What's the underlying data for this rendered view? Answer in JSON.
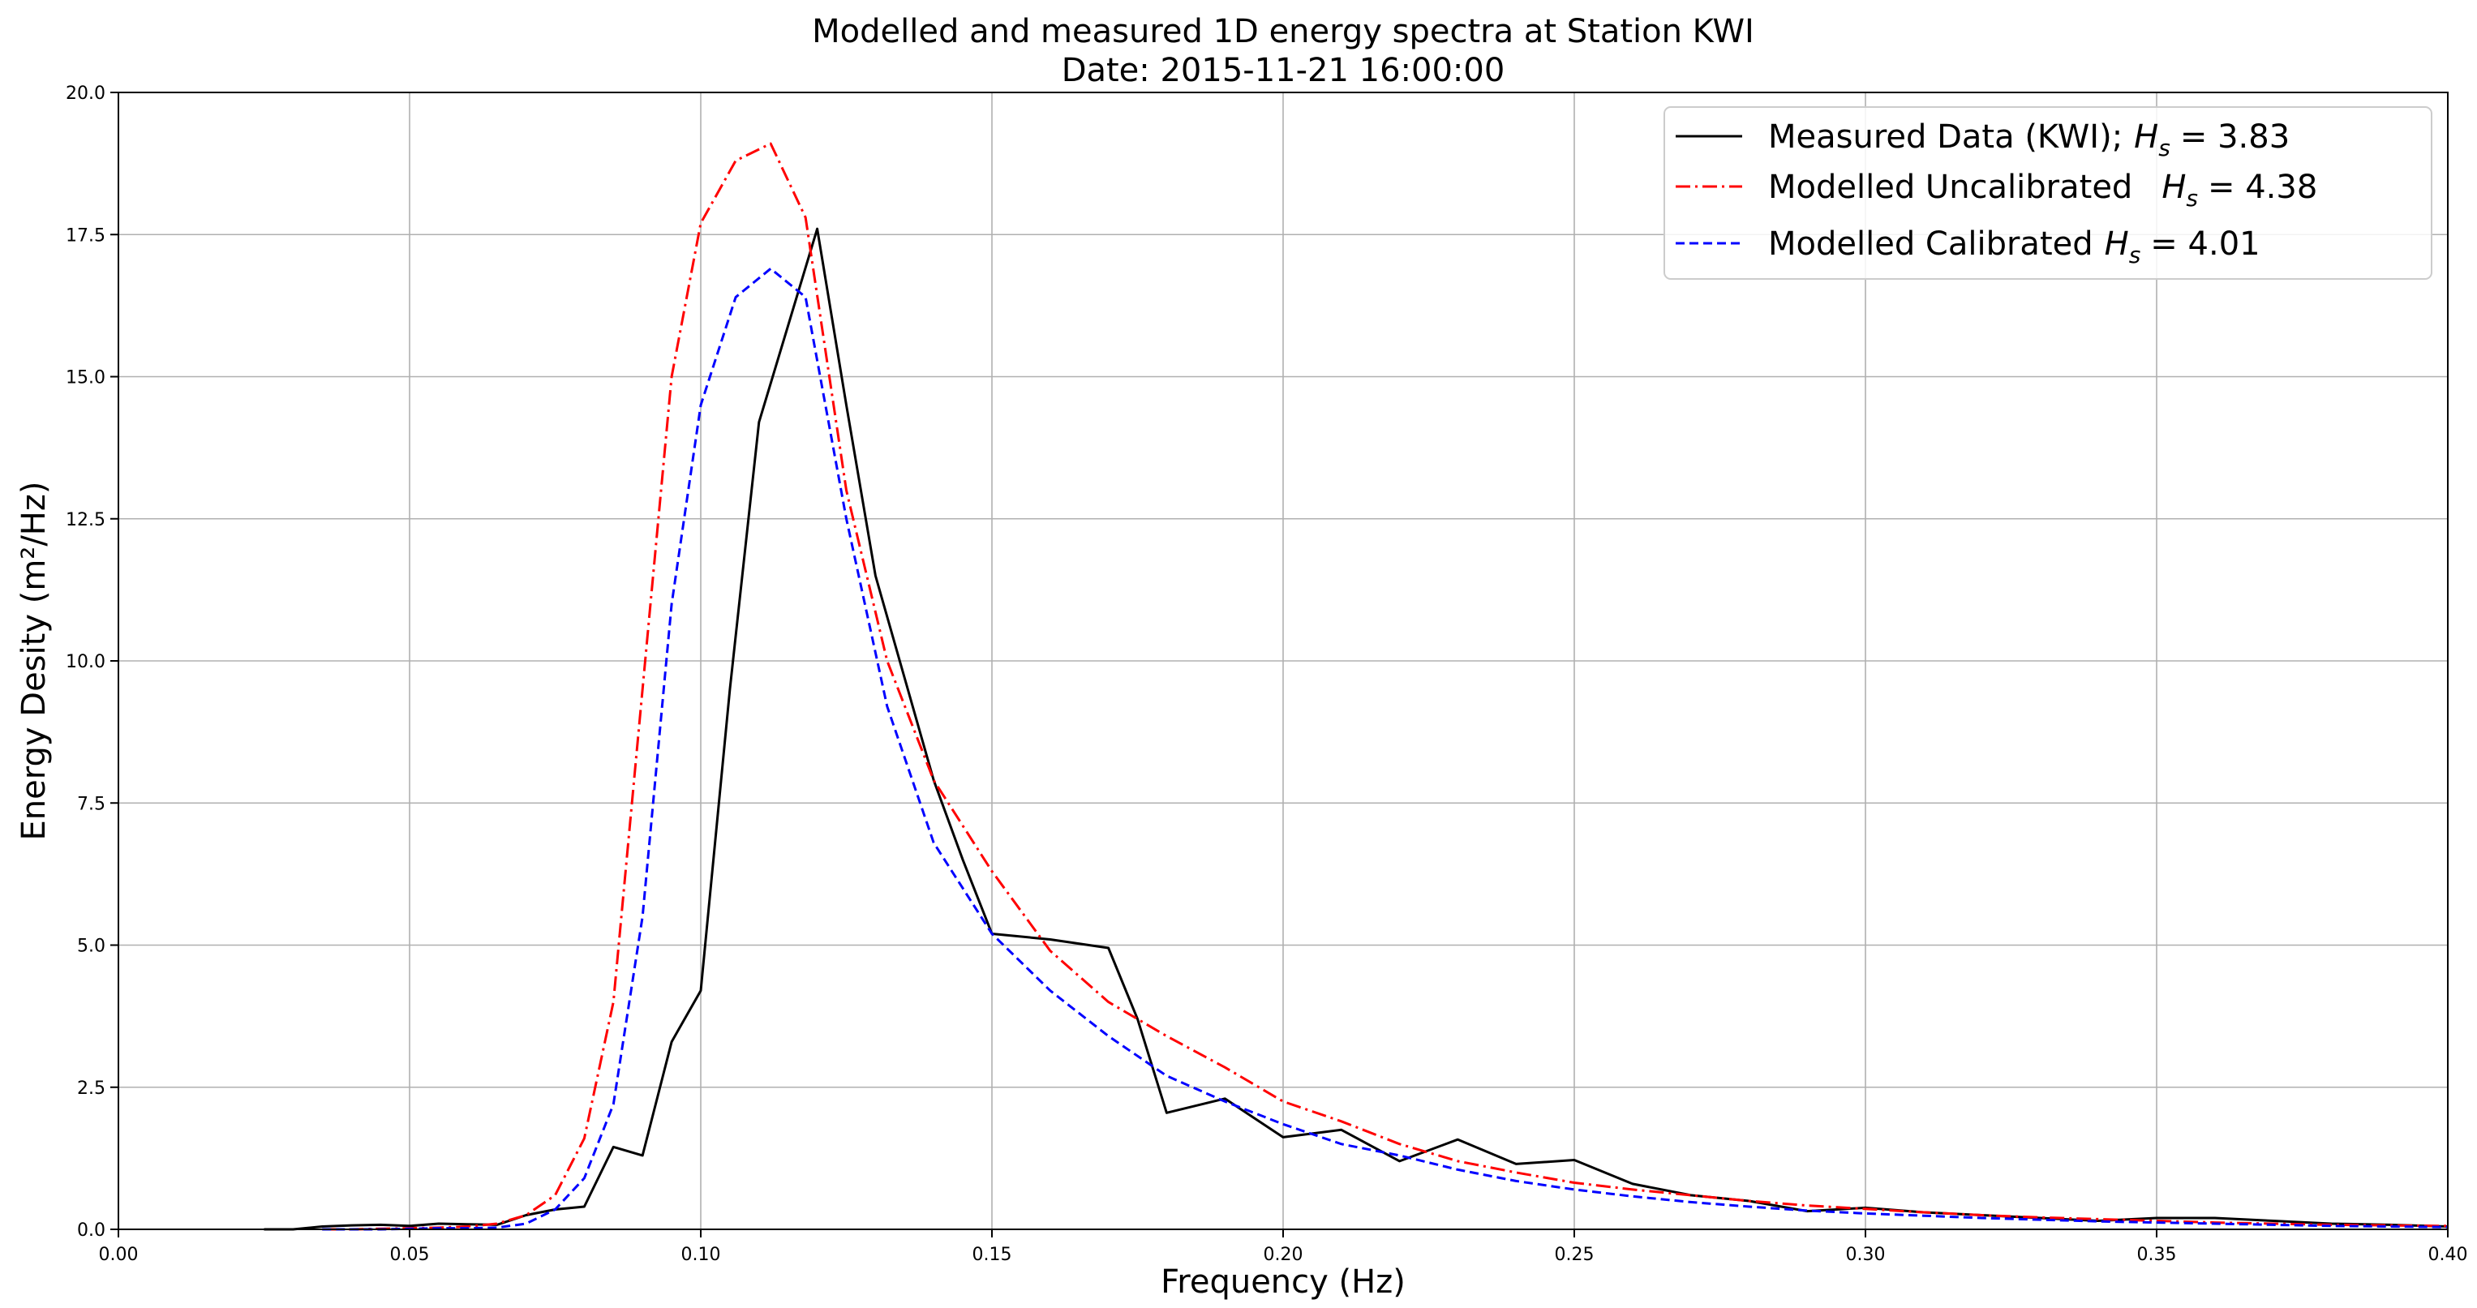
{
  "chart_data": {
    "type": "line",
    "title": "Modelled and measured 1D energy spectra at Station KWI",
    "subtitle": "Date: 2015-11-21 16:00:00",
    "xlabel": "Frequency (Hz)",
    "ylabel": "Energy Desity (m²/Hz)",
    "xlim": [
      0.0,
      0.4
    ],
    "ylim": [
      0.0,
      20.0
    ],
    "xticks": [
      0.0,
      0.05,
      0.1,
      0.15,
      0.2,
      0.25,
      0.3,
      0.35,
      0.4
    ],
    "xtick_labels": [
      "0.00",
      "0.05",
      "0.10",
      "0.15",
      "0.20",
      "0.25",
      "0.30",
      "0.35",
      "0.40"
    ],
    "yticks": [
      0.0,
      2.5,
      5.0,
      7.5,
      10.0,
      12.5,
      15.0,
      17.5,
      20.0
    ],
    "ytick_labels": [
      "0.0",
      "2.5",
      "5.0",
      "7.5",
      "10.0",
      "12.5",
      "15.0",
      "17.5",
      "20.0"
    ],
    "grid": true,
    "legend_position": "top-right",
    "series": [
      {
        "name": "Measured Data (KWI); Hs = 3.83",
        "legend_prefix": "Measured Data (KWI);",
        "legend_hs": "= 3.83",
        "color": "#000000",
        "style": "solid",
        "x": [
          0.025,
          0.03,
          0.035,
          0.04,
          0.045,
          0.05,
          0.055,
          0.06,
          0.065,
          0.07,
          0.075,
          0.08,
          0.085,
          0.09,
          0.095,
          0.1,
          0.105,
          0.11,
          0.115,
          0.12,
          0.125,
          0.13,
          0.135,
          0.14,
          0.145,
          0.15,
          0.16,
          0.17,
          0.175,
          0.18,
          0.19,
          0.2,
          0.21,
          0.22,
          0.23,
          0.24,
          0.25,
          0.26,
          0.27,
          0.28,
          0.29,
          0.3,
          0.31,
          0.32,
          0.33,
          0.34,
          0.35,
          0.36,
          0.37,
          0.38,
          0.39,
          0.4
        ],
        "y": [
          0.0,
          0.0,
          0.05,
          0.07,
          0.08,
          0.06,
          0.1,
          0.09,
          0.08,
          0.25,
          0.35,
          0.4,
          1.45,
          1.3,
          3.3,
          4.2,
          9.5,
          14.2,
          15.9,
          17.6,
          14.5,
          11.5,
          9.7,
          7.9,
          6.5,
          5.2,
          5.1,
          4.95,
          3.7,
          2.05,
          2.3,
          1.62,
          1.75,
          1.2,
          1.58,
          1.15,
          1.22,
          0.8,
          0.6,
          0.5,
          0.32,
          0.38,
          0.3,
          0.25,
          0.2,
          0.15,
          0.2,
          0.2,
          0.15,
          0.1,
          0.08,
          0.05
        ]
      },
      {
        "name": "Modelled Uncalibrated Hs = 4.38",
        "legend_prefix": "Modelled Uncalibrated",
        "legend_hs": "= 4.38",
        "color": "#ff0000",
        "style": "dashdot",
        "x": [
          0.035,
          0.04,
          0.045,
          0.05,
          0.055,
          0.06,
          0.065,
          0.07,
          0.075,
          0.08,
          0.085,
          0.09,
          0.095,
          0.1,
          0.106,
          0.112,
          0.118,
          0.125,
          0.132,
          0.14,
          0.15,
          0.16,
          0.17,
          0.18,
          0.19,
          0.2,
          0.21,
          0.22,
          0.23,
          0.24,
          0.25,
          0.26,
          0.27,
          0.28,
          0.29,
          0.3,
          0.31,
          0.32,
          0.33,
          0.34,
          0.35,
          0.36,
          0.37,
          0.38,
          0.39,
          0.4
        ],
        "y": [
          0.0,
          0.0,
          0.01,
          0.02,
          0.03,
          0.05,
          0.1,
          0.25,
          0.6,
          1.6,
          4.0,
          9.5,
          15.0,
          17.7,
          18.8,
          19.1,
          17.8,
          13.0,
          10.0,
          7.9,
          6.3,
          4.9,
          4.0,
          3.4,
          2.85,
          2.25,
          1.9,
          1.5,
          1.2,
          1.0,
          0.82,
          0.7,
          0.6,
          0.5,
          0.42,
          0.36,
          0.3,
          0.25,
          0.21,
          0.18,
          0.15,
          0.12,
          0.1,
          0.08,
          0.07,
          0.06
        ]
      },
      {
        "name": "Modelled Calibrated Hs = 4.01",
        "legend_prefix": "Modelled Calibrated",
        "legend_hs": "= 4.01",
        "color": "#0000ff",
        "style": "dashed",
        "x": [
          0.035,
          0.04,
          0.045,
          0.05,
          0.055,
          0.06,
          0.065,
          0.07,
          0.075,
          0.08,
          0.085,
          0.09,
          0.095,
          0.1,
          0.106,
          0.112,
          0.118,
          0.125,
          0.132,
          0.14,
          0.15,
          0.16,
          0.17,
          0.18,
          0.19,
          0.2,
          0.21,
          0.22,
          0.23,
          0.24,
          0.25,
          0.26,
          0.27,
          0.28,
          0.29,
          0.3,
          0.31,
          0.32,
          0.33,
          0.34,
          0.35,
          0.36,
          0.37,
          0.38,
          0.39,
          0.4
        ],
        "y": [
          0.0,
          0.0,
          0.0,
          0.01,
          0.02,
          0.02,
          0.03,
          0.1,
          0.35,
          0.9,
          2.2,
          5.5,
          11.0,
          14.5,
          16.4,
          16.9,
          16.4,
          12.5,
          9.2,
          6.8,
          5.2,
          4.2,
          3.4,
          2.7,
          2.25,
          1.85,
          1.5,
          1.3,
          1.05,
          0.85,
          0.7,
          0.58,
          0.48,
          0.4,
          0.33,
          0.28,
          0.24,
          0.2,
          0.17,
          0.14,
          0.12,
          0.1,
          0.08,
          0.06,
          0.05,
          0.04
        ]
      }
    ]
  }
}
